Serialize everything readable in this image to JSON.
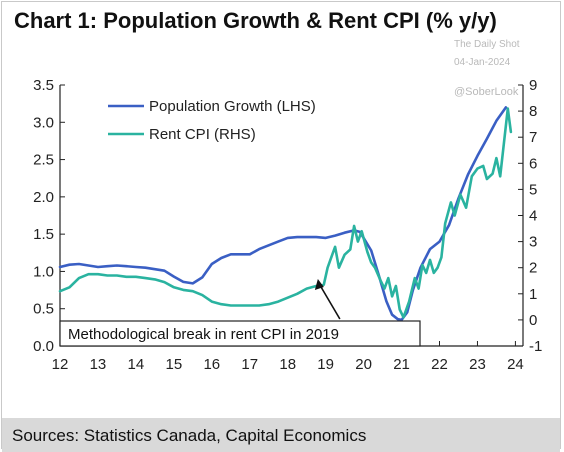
{
  "title": "Chart 1: Population Growth & Rent CPI (% y/y)",
  "watermark": {
    "brand": "The Daily Shot",
    "date": "04-Jan-2024",
    "handle": "@SoberLook"
  },
  "source": "Sources: Statistics Canada, Capital Economics",
  "colors": {
    "population": "#3a5fc4",
    "rent": "#2ab3a0",
    "axis": "#222222"
  },
  "chart_data": {
    "type": "line",
    "x_ticks": [
      "12",
      "13",
      "14",
      "15",
      "16",
      "17",
      "18",
      "19",
      "20",
      "21",
      "22",
      "23",
      "24"
    ],
    "x_range": [
      12,
      24.2
    ],
    "y_left": {
      "label": "LHS",
      "range": [
        0.0,
        3.5
      ],
      "ticks": [
        "0.0",
        "0.5",
        "1.0",
        "1.5",
        "2.0",
        "2.5",
        "3.0",
        "3.5"
      ]
    },
    "y_right": {
      "label": "RHS",
      "range": [
        -1,
        9
      ],
      "ticks": [
        "-1",
        "0",
        "1",
        "2",
        "3",
        "4",
        "5",
        "6",
        "7",
        "8",
        "9"
      ]
    },
    "series": [
      {
        "name": "Population Growth (LHS)",
        "axis": "left",
        "points": [
          [
            12.0,
            1.06
          ],
          [
            12.25,
            1.09
          ],
          [
            12.5,
            1.1
          ],
          [
            12.75,
            1.08
          ],
          [
            13.0,
            1.06
          ],
          [
            13.25,
            1.07
          ],
          [
            13.5,
            1.08
          ],
          [
            13.75,
            1.07
          ],
          [
            14.0,
            1.06
          ],
          [
            14.25,
            1.05
          ],
          [
            14.5,
            1.03
          ],
          [
            14.75,
            1.01
          ],
          [
            15.0,
            0.93
          ],
          [
            15.25,
            0.86
          ],
          [
            15.5,
            0.84
          ],
          [
            15.75,
            0.92
          ],
          [
            16.0,
            1.1
          ],
          [
            16.25,
            1.18
          ],
          [
            16.5,
            1.23
          ],
          [
            16.75,
            1.23
          ],
          [
            17.0,
            1.23
          ],
          [
            17.25,
            1.3
          ],
          [
            17.5,
            1.35
          ],
          [
            17.75,
            1.4
          ],
          [
            18.0,
            1.45
          ],
          [
            18.25,
            1.46
          ],
          [
            18.5,
            1.46
          ],
          [
            18.75,
            1.46
          ],
          [
            19.0,
            1.45
          ],
          [
            19.25,
            1.48
          ],
          [
            19.5,
            1.52
          ],
          [
            19.75,
            1.55
          ],
          [
            19.9,
            1.53
          ],
          [
            20.0,
            1.45
          ],
          [
            20.2,
            1.28
          ],
          [
            20.4,
            0.95
          ],
          [
            20.6,
            0.6
          ],
          [
            20.75,
            0.42
          ],
          [
            20.9,
            0.36
          ],
          [
            21.0,
            0.35
          ],
          [
            21.15,
            0.45
          ],
          [
            21.3,
            0.75
          ],
          [
            21.5,
            1.05
          ],
          [
            21.75,
            1.3
          ],
          [
            22.0,
            1.4
          ],
          [
            22.25,
            1.62
          ],
          [
            22.5,
            1.98
          ],
          [
            22.75,
            2.3
          ],
          [
            23.0,
            2.55
          ],
          [
            23.25,
            2.78
          ],
          [
            23.5,
            3.02
          ],
          [
            23.75,
            3.2
          ]
        ]
      },
      {
        "name": "Rent CPI (RHS)",
        "axis": "right",
        "points": [
          [
            12.0,
            1.1
          ],
          [
            12.25,
            1.25
          ],
          [
            12.5,
            1.6
          ],
          [
            12.75,
            1.75
          ],
          [
            13.0,
            1.75
          ],
          [
            13.25,
            1.7
          ],
          [
            13.5,
            1.7
          ],
          [
            13.75,
            1.65
          ],
          [
            14.0,
            1.65
          ],
          [
            14.25,
            1.6
          ],
          [
            14.5,
            1.55
          ],
          [
            14.75,
            1.45
          ],
          [
            15.0,
            1.25
          ],
          [
            15.25,
            1.15
          ],
          [
            15.5,
            1.1
          ],
          [
            15.75,
            0.95
          ],
          [
            16.0,
            0.7
          ],
          [
            16.25,
            0.6
          ],
          [
            16.5,
            0.55
          ],
          [
            16.75,
            0.55
          ],
          [
            17.0,
            0.55
          ],
          [
            17.25,
            0.55
          ],
          [
            17.5,
            0.6
          ],
          [
            17.75,
            0.7
          ],
          [
            18.0,
            0.85
          ],
          [
            18.25,
            1.0
          ],
          [
            18.5,
            1.2
          ],
          [
            18.75,
            1.3
          ],
          [
            18.95,
            1.35
          ],
          [
            19.05,
            2.0
          ],
          [
            19.15,
            2.4
          ],
          [
            19.25,
            2.8
          ],
          [
            19.35,
            2.0
          ],
          [
            19.5,
            2.5
          ],
          [
            19.65,
            2.7
          ],
          [
            19.75,
            3.6
          ],
          [
            19.85,
            3.0
          ],
          [
            19.95,
            3.4
          ],
          [
            20.1,
            2.6
          ],
          [
            20.2,
            2.2
          ],
          [
            20.3,
            2.0
          ],
          [
            20.45,
            1.5
          ],
          [
            20.55,
            1.2
          ],
          [
            20.65,
            1.6
          ],
          [
            20.75,
            0.9
          ],
          [
            20.85,
            1.3
          ],
          [
            20.95,
            0.4
          ],
          [
            21.05,
            0.1
          ],
          [
            21.2,
            0.7
          ],
          [
            21.35,
            1.6
          ],
          [
            21.45,
            1.2
          ],
          [
            21.55,
            2.1
          ],
          [
            21.65,
            1.8
          ],
          [
            21.75,
            2.3
          ],
          [
            21.85,
            1.8
          ],
          [
            21.95,
            2.0
          ],
          [
            22.05,
            2.4
          ],
          [
            22.15,
            3.7
          ],
          [
            22.3,
            4.5
          ],
          [
            22.4,
            4.0
          ],
          [
            22.55,
            4.8
          ],
          [
            22.7,
            4.3
          ],
          [
            22.85,
            5.5
          ],
          [
            23.0,
            5.8
          ],
          [
            23.15,
            5.9
          ],
          [
            23.25,
            5.4
          ],
          [
            23.4,
            5.6
          ],
          [
            23.5,
            6.2
          ],
          [
            23.6,
            5.5
          ],
          [
            23.7,
            6.8
          ],
          [
            23.8,
            8.1
          ],
          [
            23.88,
            7.2
          ]
        ]
      }
    ],
    "annotation": {
      "text": "Methodological break in rent CPI in 2019",
      "arrow_x": 18.9
    },
    "legend_position": "top-left",
    "grid": false
  }
}
